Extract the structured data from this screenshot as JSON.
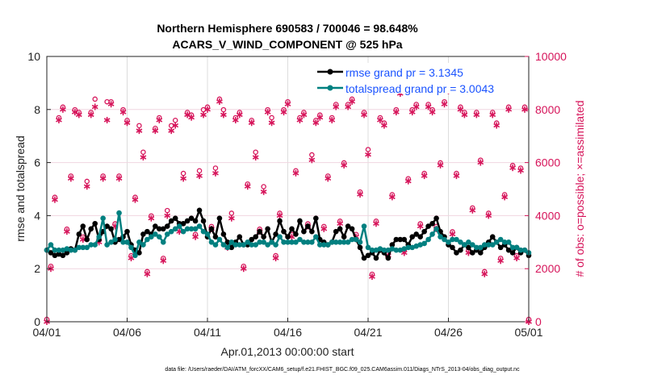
{
  "chart_data": {
    "type": "line",
    "title": [
      "Northern Hemisphere 690583 / 700046 = 98.648%",
      "ACARS_V_WIND_COMPONENT @ 525 hPa"
    ],
    "xlabel": "Apr.01,2013 00:00:00 start",
    "ylabel": "rmse and totalspread",
    "ylabel_right": "# of obs: o=possible; ×=assimilated",
    "footer": "data file: /Users/raeder/DAI/ATM_forcXX/CAM6_setup/f.e21.FHIST_BGC.f09_025.CAM6assim.011/Diags_NTrS_2013-04/obs_diag_output.nc",
    "x_range_days": [
      0,
      30
    ],
    "x_ticks": [
      {
        "day": 0,
        "label": "04/01"
      },
      {
        "day": 5,
        "label": "04/06"
      },
      {
        "day": 10,
        "label": "04/11"
      },
      {
        "day": 15,
        "label": "04/16"
      },
      {
        "day": 20,
        "label": "04/21"
      },
      {
        "day": 25,
        "label": "04/26"
      },
      {
        "day": 30,
        "label": "05/01"
      }
    ],
    "ylim": [
      0,
      10
    ],
    "y_ticks": [
      "0",
      "2",
      "4",
      "6",
      "8",
      "10"
    ],
    "ylim_right": [
      0,
      10000
    ],
    "y_ticks_right": [
      "0",
      "2000",
      "4000",
      "6000",
      "8000",
      "10000"
    ],
    "step_days": 0.25,
    "legend": [
      {
        "label": "rmse grand pr = 3.1345",
        "color": "#000000"
      },
      {
        "label": "totalspread grand pr = 3.0043",
        "color": "#008080"
      }
    ],
    "legend_position": "top-right",
    "colors": {
      "rmse": "#000000",
      "spread": "#008080",
      "obs": "#d6145a",
      "legend_text": "#1a53ff"
    },
    "series": [
      {
        "name": "rmse",
        "values": [
          2.7,
          2.6,
          2.5,
          2.55,
          2.5,
          2.6,
          2.75,
          2.7,
          3.3,
          3.6,
          3.1,
          3.5,
          3.7,
          3.1,
          3.4,
          3.6,
          3.5,
          3.0,
          3.1,
          3.2,
          3.4,
          2.9,
          2.7,
          2.6,
          3.3,
          3.4,
          3.3,
          3.6,
          3.5,
          3.5,
          3.6,
          3.8,
          3.9,
          3.7,
          3.7,
          3.8,
          3.9,
          3.8,
          4.2,
          3.8,
          3.2,
          3.5,
          3.2,
          3.9,
          3.3,
          3.0,
          2.8,
          3.0,
          3.2,
          2.9,
          2.9,
          3.1,
          3.2,
          3.4,
          3.2,
          3.5,
          3.0,
          3.3,
          3.8,
          3.4,
          3.2,
          3.5,
          3.3,
          3.8,
          3.4,
          3.6,
          3.4,
          3.9,
          3.1,
          3.0,
          2.9,
          3.0,
          3.4,
          3.5,
          3.2,
          3.6,
          3.5,
          3.1,
          2.8,
          2.4,
          2.5,
          2.6,
          2.4,
          2.7,
          2.6,
          2.4,
          2.9,
          3.1,
          3.1,
          3.1,
          2.9,
          3.2,
          3.3,
          3.2,
          3.4,
          3.6,
          3.7,
          3.9,
          3.4,
          3.2,
          2.9,
          2.8,
          2.6,
          2.7,
          2.9,
          2.8,
          2.6,
          2.7,
          2.6,
          2.8,
          3.0,
          3.2,
          3.0,
          2.8,
          2.9,
          2.7,
          2.6,
          2.8,
          2.6,
          2.7,
          2.5
        ]
      },
      {
        "name": "totalspread",
        "values": [
          2.7,
          2.9,
          2.7,
          2.7,
          2.7,
          2.75,
          2.7,
          2.7,
          2.8,
          2.8,
          2.8,
          2.9,
          2.9,
          3.2,
          3.9,
          2.9,
          3.0,
          3.1,
          4.1,
          3.0,
          3.0,
          2.8,
          2.5,
          3.0,
          2.9,
          3.1,
          3.2,
          3.3,
          3.2,
          3.0,
          3.3,
          3.4,
          3.5,
          3.6,
          3.4,
          3.5,
          3.5,
          3.5,
          3.6,
          3.4,
          3.3,
          3.0,
          2.9,
          3.1,
          2.9,
          2.8,
          3.0,
          2.9,
          2.9,
          2.9,
          3.0,
          2.9,
          2.9,
          3.0,
          3.0,
          2.9,
          3.0,
          2.9,
          3.2,
          3.0,
          3.0,
          3.0,
          3.0,
          3.1,
          3.0,
          3.0,
          3.0,
          3.2,
          2.9,
          2.9,
          2.9,
          3.0,
          3.0,
          3.0,
          3.0,
          3.0,
          3.1,
          3.1,
          3.0,
          3.6,
          2.8,
          2.7,
          2.7,
          2.75,
          2.7,
          2.7,
          2.75,
          2.7,
          2.7,
          2.75,
          2.8,
          2.8,
          2.85,
          2.9,
          2.95,
          3.1,
          3.3,
          3.5,
          3.2,
          3.1,
          3.0,
          3.1,
          3.1,
          3.0,
          2.9,
          3.0,
          2.9,
          2.8,
          2.8,
          2.9,
          2.9,
          2.9,
          3.0,
          3.1,
          3.0,
          3.0,
          2.8,
          2.8,
          2.7,
          2.7,
          2.6
        ]
      },
      {
        "name": "obs_possible",
        "values": [
          0,
          2000,
          4600,
          7600,
          8000,
          3400,
          5400,
          7900,
          7800,
          3100,
          5200,
          7800,
          8300,
          3000,
          5400,
          8200,
          8200,
          3600,
          5400,
          7900,
          7500,
          2400,
          4600,
          7300,
          6300,
          1800,
          3900,
          7200,
          7600,
          2300,
          4100,
          7300,
          7500,
          3400,
          5500,
          7800,
          7700,
          3200,
          5600,
          7900,
          8000,
          3500,
          5700,
          8300,
          7900,
          2800,
          4000,
          7600,
          7800,
          2000,
          5100,
          7500,
          6300,
          3400,
          5000,
          7900,
          7600,
          2400,
          4000,
          7900,
          8200,
          3200,
          5600,
          7600,
          7800,
          3600,
          6200,
          7500,
          7700,
          3500,
          5400,
          7600,
          8100,
          3700,
          5900,
          8100,
          8300,
          3200,
          4800,
          7800,
          6400,
          1700,
          3700,
          7600,
          7400,
          2500,
          4700,
          7900,
          8700,
          2600,
          5300,
          7900,
          8100,
          3600,
          5500,
          8100,
          7900,
          3500,
          5900,
          8200,
          8800,
          3300,
          5500,
          8000,
          7800,
          2600,
          4200,
          7800,
          6000,
          1800,
          4000,
          7800,
          7400,
          2300,
          4700,
          8000,
          5800,
          2400,
          5700,
          8000,
          0
        ]
      },
      {
        "name": "obs_assimilated",
        "values": [
          0,
          2000,
          4600,
          7600,
          8000,
          3400,
          5400,
          7900,
          7800,
          3100,
          5100,
          7800,
          8100,
          3000,
          5400,
          7600,
          8200,
          3600,
          5400,
          7900,
          7500,
          2400,
          4600,
          7200,
          6200,
          1800,
          3900,
          7200,
          7600,
          2300,
          4000,
          7200,
          7400,
          3400,
          5400,
          7800,
          7700,
          3200,
          5500,
          7800,
          8000,
          3500,
          5600,
          8300,
          7800,
          2800,
          3900,
          7600,
          7800,
          2000,
          5100,
          7500,
          6200,
          3400,
          4900,
          7900,
          7500,
          2400,
          4000,
          7900,
          8200,
          3200,
          5600,
          7600,
          7800,
          3600,
          6100,
          7500,
          7700,
          3500,
          5400,
          7600,
          8100,
          3700,
          5900,
          8100,
          8300,
          3200,
          4800,
          7800,
          6300,
          1700,
          3700,
          7600,
          7400,
          2500,
          4700,
          7900,
          8600,
          2600,
          5300,
          7900,
          8100,
          3600,
          5500,
          8100,
          7900,
          3500,
          5900,
          8200,
          8700,
          3300,
          5500,
          8000,
          7800,
          2600,
          4200,
          7800,
          6000,
          1800,
          4000,
          7800,
          7400,
          2300,
          4700,
          8000,
          5800,
          2400,
          5700,
          8000,
          0
        ]
      }
    ]
  }
}
